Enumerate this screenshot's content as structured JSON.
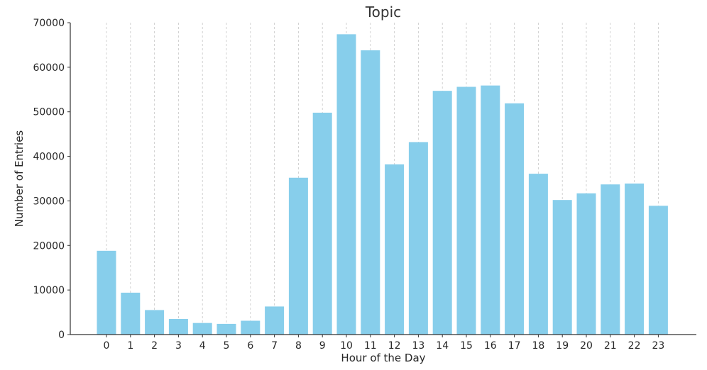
{
  "chart_data": {
    "type": "bar",
    "title": "Topic",
    "xlabel": "Hour of the Day",
    "ylabel": "Number of Entries",
    "categories": [
      "0",
      "1",
      "2",
      "3",
      "4",
      "5",
      "6",
      "7",
      "8",
      "9",
      "10",
      "11",
      "12",
      "13",
      "14",
      "15",
      "16",
      "17",
      "18",
      "19",
      "20",
      "21",
      "22",
      "23"
    ],
    "values": [
      18800,
      9400,
      5500,
      3500,
      2600,
      2400,
      3100,
      6300,
      35200,
      49800,
      67400,
      63800,
      38200,
      43200,
      54700,
      55600,
      55900,
      51900,
      36100,
      30200,
      31700,
      33700,
      33900,
      28900
    ],
    "ylim": [
      0,
      70000
    ],
    "yticks": [
      0,
      10000,
      20000,
      30000,
      40000,
      50000,
      60000,
      70000
    ],
    "grid": "vertical-dashed",
    "colors": {
      "bar": "#87ceeb",
      "axis": "#333333",
      "grid": "#c8c8c8",
      "title": "#333333"
    }
  }
}
